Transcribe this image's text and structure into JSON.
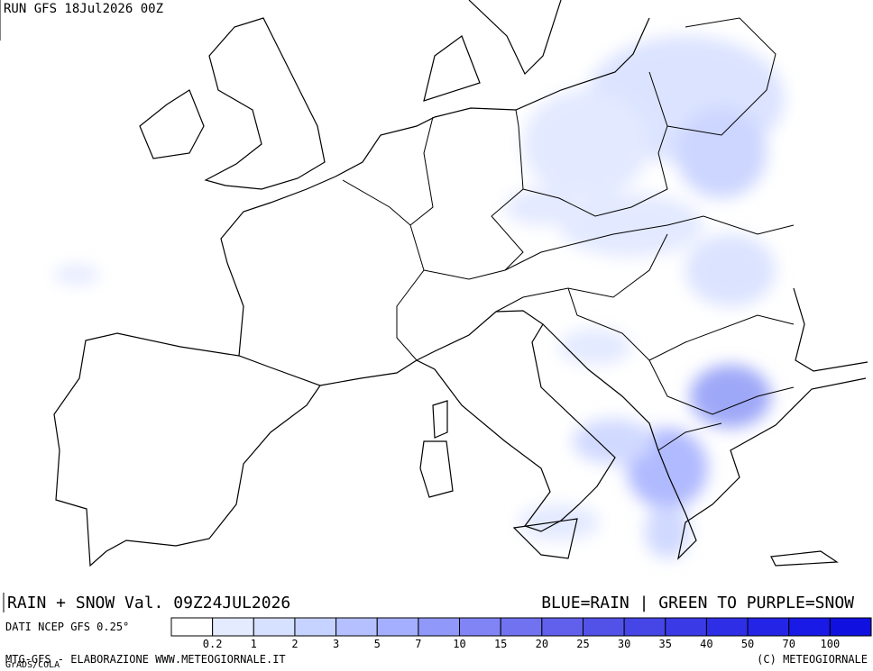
{
  "header": {
    "run": "RUN GFS 18Jul2026 00Z"
  },
  "footer": {
    "title": "RAIN + SNOW Val. 09Z24JUL2026",
    "note": "BLUE=RAIN | GREEN TO PURPLE=SNOW",
    "source": "DATI NCEP GFS 0.25°",
    "credit": "MTG-GFS - ELABORAZIONE WWW.METEOGIORNALE.IT",
    "software": "GrADS/COLA",
    "copyright": "(C) METEOGIORNALE"
  },
  "legend": {
    "labels": [
      0.2,
      1,
      2,
      3,
      5,
      7,
      10,
      15,
      20,
      25,
      30,
      35,
      40,
      50,
      70,
      100
    ],
    "colors": [
      "#ffffff",
      "#e4ebff",
      "#d6e0ff",
      "#c6d2ff",
      "#b4c0ff",
      "#a4b0ff",
      "#9098fa",
      "#8084f5",
      "#7072f0",
      "#6060ec",
      "#5252e8",
      "#4646e6",
      "#3a3ae6",
      "#2e2ee6",
      "#2424e6",
      "#1a1ae6",
      "#1010e0"
    ]
  }
}
